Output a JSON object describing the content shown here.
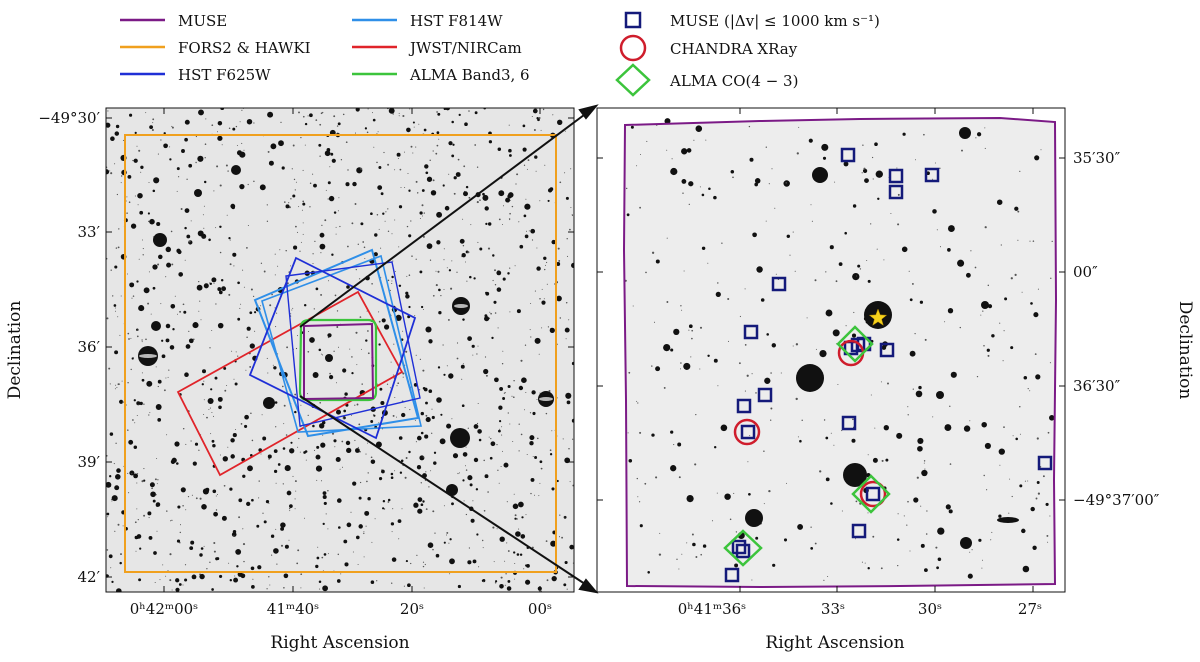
{
  "legend": {
    "col1": [
      {
        "label": "MUSE",
        "color": "#7b1a86"
      },
      {
        "label": "FORS2 & HAWKI",
        "color": "#f0a01e"
      },
      {
        "label": "HST F625W",
        "color": "#1f2fd6"
      }
    ],
    "col2": [
      {
        "label": "HST F814W",
        "color": "#2f8fe8"
      },
      {
        "label": "JWST/NIRCam",
        "color": "#e0242a"
      },
      {
        "label": "ALMA Band3, 6",
        "color": "#3cc43c"
      }
    ],
    "markers": [
      {
        "label": "MUSE (|Δv| ≤ 1000 km s⁻¹)",
        "color": "#141a7a",
        "shape": "square"
      },
      {
        "label": "CHANDRA XRay",
        "color": "#cf1d2c",
        "shape": "circle"
      },
      {
        "label": "ALMA CO(4 − 3)",
        "color": "#3cc43c",
        "shape": "diamond"
      }
    ]
  },
  "left_panel": {
    "xlabel": "Right Ascension",
    "ylabel": "Declination",
    "yticks": [
      "−49°30′",
      "33′",
      "36′",
      "39′",
      "42′"
    ],
    "xticks": [
      "0ʰ42ᵐ00ˢ",
      "41ᵐ40ˢ",
      "20ˢ",
      "00ˢ"
    ]
  },
  "right_panel": {
    "xlabel": "Right Ascension",
    "ylabel": "Declination",
    "yticks": [
      "35′30″",
      "00″",
      "36′30″",
      "−49°37′00″"
    ],
    "xticks": [
      "0ʰ41ᵐ36ˢ",
      "33ˢ",
      "30ˢ",
      "27ˢ"
    ],
    "star_color": "#f6d21c"
  }
}
